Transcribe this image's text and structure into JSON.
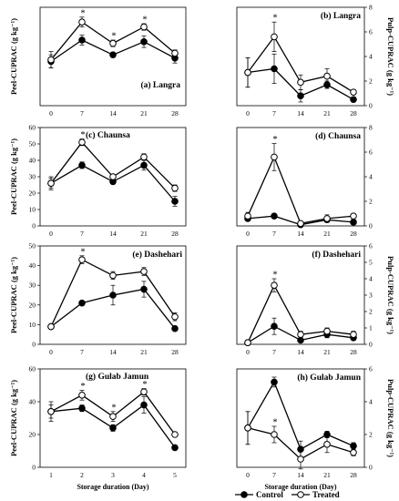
{
  "figure": {
    "xlabel": "Storage duration (Day)",
    "legend": {
      "placement": "bottom-center",
      "entries": [
        {
          "name": "Control",
          "marker": "filled-circle"
        },
        {
          "name": "Treated",
          "marker": "open-circle"
        }
      ]
    }
  },
  "chart_data": [
    {
      "type": "line",
      "panel": "a",
      "title": "(a) Langra",
      "title_position": "bottom-right",
      "ylabel": "Peel-CUPRAC (g kg⁻¹)",
      "y_axis_side": "left",
      "show_ylabel": true,
      "ylim": [
        0,
        60
      ],
      "yticks": [
        0,
        10,
        20,
        30,
        40,
        50,
        60
      ],
      "show_yticks": false,
      "x": [
        0,
        7,
        14,
        21,
        28
      ],
      "xticks": [
        "0",
        "7",
        "14",
        "21",
        "28"
      ],
      "series": [
        {
          "name": "Control",
          "values": [
            27,
            40,
            31,
            39,
            29
          ],
          "errors": [
            4,
            3,
            1.5,
            3.5,
            3
          ]
        },
        {
          "name": "Treated",
          "values": [
            28,
            51,
            38,
            48,
            32
          ],
          "errors": [
            5,
            3,
            2,
            2,
            2
          ]
        }
      ],
      "stars": [
        "7",
        "14",
        "21"
      ]
    },
    {
      "type": "line",
      "panel": "b",
      "title": "(b) Langra",
      "title_position": "top-right",
      "ylabel": "Pulp-CUPRAC (g kg⁻¹)",
      "y_axis_side": "right",
      "show_ylabel": true,
      "ylim": [
        0,
        8
      ],
      "yticks": [
        0,
        2,
        4,
        6,
        8
      ],
      "show_yticks": true,
      "x": [
        0,
        7,
        14,
        21,
        28
      ],
      "xticks": [
        "0",
        "7",
        "14",
        "21",
        "28"
      ],
      "series": [
        {
          "name": "Control",
          "values": [
            2.7,
            3.0,
            0.8,
            1.7,
            0.5
          ],
          "errors": [
            1.2,
            1.2,
            0.5,
            0.3,
            0.2
          ]
        },
        {
          "name": "Treated",
          "values": [
            2.7,
            5.6,
            1.9,
            2.4,
            1.1
          ],
          "errors": [
            1.2,
            1.2,
            0.6,
            0.6,
            0.2
          ]
        }
      ],
      "stars": [
        "7"
      ]
    },
    {
      "type": "line",
      "panel": "c",
      "title": "(c) Chaunsa",
      "title_position": "top-left",
      "ylabel": "Peel-CUPRAC (g kg⁻¹)",
      "y_axis_side": "left",
      "show_ylabel": true,
      "ylim": [
        0,
        60
      ],
      "yticks": [
        0,
        10,
        20,
        30,
        40,
        50,
        60
      ],
      "show_yticks": true,
      "x": [
        0,
        7,
        14,
        21,
        28
      ],
      "xticks": [
        "0",
        "7",
        "14",
        "21",
        "28"
      ],
      "series": [
        {
          "name": "Control",
          "values": [
            26,
            37,
            27,
            37,
            15
          ],
          "errors": [
            3,
            2,
            1,
            3,
            3
          ]
        },
        {
          "name": "Treated",
          "values": [
            26,
            51,
            30,
            42,
            23
          ],
          "errors": [
            4,
            2,
            1,
            2,
            2
          ]
        }
      ],
      "stars": [
        "7"
      ]
    },
    {
      "type": "line",
      "panel": "d",
      "title": "(d) Chaunsa",
      "title_position": "top-right",
      "ylabel": "Pulp-CUPRAC (g kg⁻¹)",
      "y_axis_side": "right",
      "show_ylabel": false,
      "ylim": [
        0,
        8
      ],
      "yticks": [
        0,
        2,
        4,
        6,
        8
      ],
      "show_yticks": true,
      "x": [
        0,
        7,
        14,
        21,
        28
      ],
      "xticks": [
        "0",
        "7",
        "14",
        "21",
        "28"
      ],
      "series": [
        {
          "name": "Control",
          "values": [
            0.6,
            0.8,
            0.1,
            0.5,
            0.3
          ],
          "errors": [
            0.2,
            0.1,
            0.05,
            0.2,
            0.1
          ]
        },
        {
          "name": "Treated",
          "values": [
            0.8,
            5.6,
            0.2,
            0.6,
            0.8
          ],
          "errors": [
            0.3,
            1.1,
            0.1,
            0.3,
            0.2
          ]
        }
      ],
      "stars": [
        "7"
      ]
    },
    {
      "type": "line",
      "panel": "e",
      "title": "(e) Dashehari",
      "title_position": "top-right",
      "ylabel": "Peel-CUPRAC (g kg⁻¹)",
      "y_axis_side": "left",
      "show_ylabel": true,
      "ylim": [
        0,
        50
      ],
      "yticks": [
        0,
        10,
        20,
        30,
        40,
        50
      ],
      "show_yticks": true,
      "x": [
        0,
        7,
        14,
        21,
        28
      ],
      "xticks": [
        "0",
        "7",
        "14",
        "21",
        "28"
      ],
      "series": [
        {
          "name": "Control",
          "values": [
            9,
            21,
            25,
            28,
            8
          ],
          "errors": [
            0.5,
            1,
            5,
            4,
            1
          ]
        },
        {
          "name": "Treated",
          "values": [
            9,
            43,
            35,
            37,
            14
          ],
          "errors": [
            0.5,
            2,
            2,
            2,
            2
          ]
        }
      ],
      "stars": [
        "7"
      ]
    },
    {
      "type": "line",
      "panel": "f",
      "title": "(f) Dashehari",
      "title_position": "top-right",
      "ylabel": "Pulp-CUPRAC (g kg⁻¹)",
      "y_axis_side": "right",
      "show_ylabel": true,
      "ylim": [
        0,
        6
      ],
      "yticks": [
        0,
        1,
        2,
        3,
        4,
        5,
        6
      ],
      "show_yticks": true,
      "x": [
        0,
        7,
        14,
        21,
        28
      ],
      "xticks": [
        "0",
        "7",
        "14",
        "21",
        "28"
      ],
      "series": [
        {
          "name": "Control",
          "values": [
            0.1,
            1.1,
            0.25,
            0.6,
            0.4
          ],
          "errors": [
            0.05,
            0.5,
            0.1,
            0.2,
            0.1
          ]
        },
        {
          "name": "Treated",
          "values": [
            0.1,
            3.6,
            0.6,
            0.8,
            0.6
          ],
          "errors": [
            0.05,
            0.4,
            0.2,
            0.2,
            0.2
          ]
        }
      ],
      "stars": [
        "7"
      ]
    },
    {
      "type": "line",
      "panel": "g",
      "title": "(g) Gulab Jamun",
      "title_position": "top-left",
      "ylabel": "Peel-CUPRAC (g kg⁻¹)",
      "y_axis_side": "left",
      "show_ylabel": true,
      "ylim": [
        0,
        60
      ],
      "yticks": [
        0,
        20,
        40,
        60
      ],
      "show_yticks": true,
      "x": [
        1,
        2,
        3,
        4,
        5
      ],
      "xticks": [
        "1",
        "2",
        "3",
        "4",
        "5"
      ],
      "series": [
        {
          "name": "Control",
          "values": [
            34,
            36,
            24,
            38,
            12
          ],
          "errors": [
            4,
            2,
            2,
            5,
            1
          ]
        },
        {
          "name": "Treated",
          "values": [
            34,
            44,
            31,
            46,
            20
          ],
          "errors": [
            6,
            3,
            3,
            2,
            1
          ]
        }
      ],
      "stars": [
        "2",
        "3",
        "4"
      ]
    },
    {
      "type": "line",
      "panel": "h",
      "title": "(h) Gulab Jamun",
      "title_position": "top-right",
      "ylabel": "Pulp-CUPRAC (g kg⁻¹)",
      "y_axis_side": "right",
      "show_ylabel": true,
      "ylim": [
        0,
        6
      ],
      "yticks": [
        0,
        2,
        4,
        6
      ],
      "show_yticks": true,
      "x": [
        0,
        7,
        14,
        21,
        28
      ],
      "xticks": [
        "0",
        "7",
        "14",
        "21",
        "28"
      ],
      "series": [
        {
          "name": "Control",
          "values": [
            2.4,
            5.2,
            1.1,
            2.0,
            1.3
          ],
          "errors": [
            1.0,
            0.3,
            0.5,
            0.2,
            0.2
          ]
        },
        {
          "name": "Treated",
          "values": [
            2.4,
            2.0,
            0.5,
            1.4,
            0.9
          ],
          "errors": [
            1.0,
            0.5,
            0.6,
            0.5,
            0.2
          ]
        }
      ],
      "stars": [
        "7"
      ]
    }
  ]
}
